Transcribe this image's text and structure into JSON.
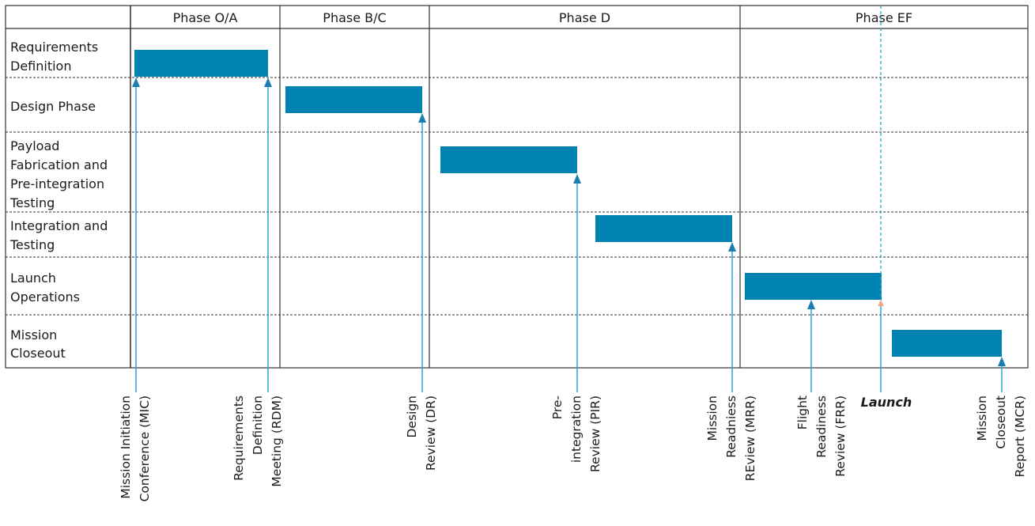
{
  "phases": [
    "Phase O/A",
    "Phase B/C",
    "Phase D",
    "Phase EF"
  ],
  "rows": [
    [
      "Requirements",
      "Definition"
    ],
    [
      "Design Phase"
    ],
    [
      "Payload",
      "Fabrication and",
      "Pre-integration",
      "Testing"
    ],
    [
      "Integration and",
      "Testing"
    ],
    [
      "Launch",
      "Operations"
    ],
    [
      "Mission",
      "Closeout"
    ]
  ],
  "milestones": [
    {
      "lines": [
        "Mission Initiation",
        "Conference (MIC)"
      ]
    },
    {
      "lines": [
        "Requirements",
        "Definition",
        "Meeting (RDM)"
      ]
    },
    {
      "lines": [
        "Design",
        "Review (DR)"
      ]
    },
    {
      "lines": [
        "Pre-",
        "integration",
        "Review (PIR)"
      ]
    },
    {
      "lines": [
        "Mission",
        "Readniess",
        "REview (MRR)"
      ]
    },
    {
      "lines": [
        "Flight",
        "Readiness",
        "Review (FRR)"
      ]
    },
    {
      "lines": [
        "Launch"
      ],
      "emphasis": true
    },
    {
      "lines": [
        "Mission",
        "Closeout",
        "Report (MCR)"
      ]
    }
  ],
  "colors": {
    "bar": "#0083b2",
    "milestone_line": "#2aa5d6",
    "arrow_head": "#1a7fb0",
    "launch_line": "#2aa5d6",
    "launch_arrow": "#f4a582",
    "grid": "#333333"
  }
}
